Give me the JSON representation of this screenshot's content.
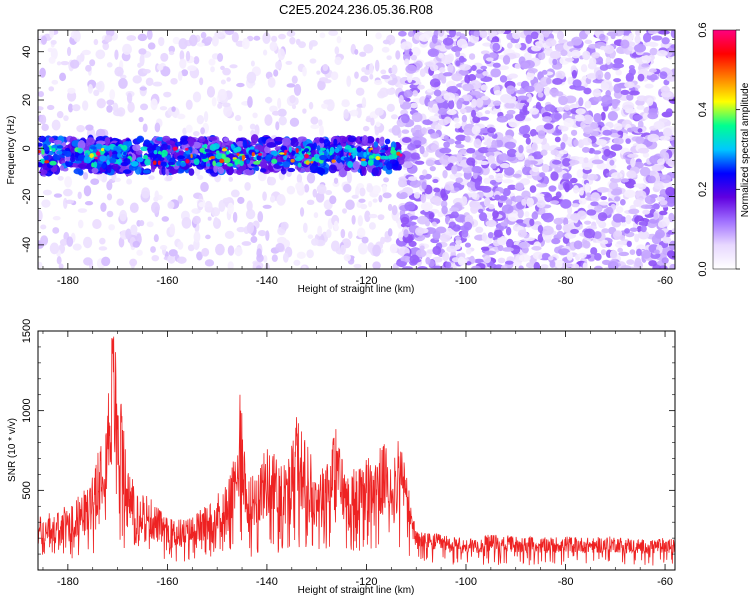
{
  "title": "C2E5.2024.236.05.36.R08",
  "chart_data": [
    {
      "type": "heatmap",
      "xlabel": "Height of straight line (km)",
      "ylabel": "Frequency (Hz)",
      "xlim": [
        -186,
        -58
      ],
      "ylim": [
        -50,
        49
      ],
      "xticks": [
        -180,
        -160,
        -140,
        -120,
        -100,
        -80,
        -60
      ],
      "yticks": [
        -40,
        -20,
        0,
        20,
        40
      ],
      "colorbar": {
        "label": "Normalized spectral amplitude",
        "range": [
          0.0,
          0.6
        ],
        "ticks": [
          0.0,
          0.2,
          0.4,
          0.6
        ],
        "colormap": [
          "#ffffff",
          "#e8d8ff",
          "#a070ff",
          "#6000e0",
          "#0000ff",
          "#00c8ff",
          "#00ff90",
          "#ffff00",
          "#ff8000",
          "#ff0000",
          "#ff0080"
        ]
      },
      "features": {
        "signal_band_frequency_hz": [
          -8,
          2
        ],
        "signal_band_x_range_km": [
          -186,
          -113
        ],
        "noise_region_x_range_km": [
          -113,
          -58
        ]
      }
    },
    {
      "type": "line",
      "xlabel": "Height of straight line (km)",
      "ylabel": "SNR (10 * v/v)",
      "xlim": [
        -186,
        -58
      ],
      "ylim": [
        0,
        1500
      ],
      "xticks": [
        -180,
        -160,
        -140,
        -120,
        -100,
        -80,
        -60
      ],
      "yticks": [
        500,
        1000,
        1500
      ],
      "color": "#ee2222",
      "x": [
        -186,
        -180,
        -176,
        -172,
        -171,
        -168,
        -164,
        -160,
        -156,
        -152,
        -148,
        -146,
        -145.3,
        -144,
        -140,
        -136,
        -134,
        -130,
        -126,
        -124,
        -120,
        -116,
        -113,
        -110,
        -105,
        -100,
        -95,
        -90,
        -85,
        -80,
        -75,
        -70,
        -65,
        -60,
        -58
      ],
      "values": [
        310,
        380,
        480,
        1050,
        1480,
        600,
        440,
        300,
        300,
        380,
        520,
        700,
        1170,
        500,
        720,
        620,
        900,
        580,
        830,
        560,
        660,
        740,
        750,
        230,
        210,
        180,
        210,
        200,
        190,
        200,
        190,
        200,
        180,
        190,
        180
      ]
    }
  ]
}
